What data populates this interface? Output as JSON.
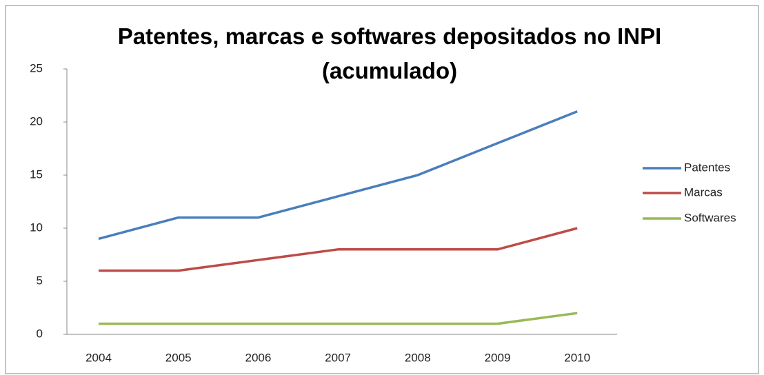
{
  "chart_data": {
    "type": "line",
    "title": "Patentes, marcas e softwares depositados no INPI (acumulado)",
    "categories": [
      "2004",
      "2005",
      "2006",
      "2007",
      "2008",
      "2009",
      "2010"
    ],
    "series": [
      {
        "name": "Patentes",
        "color": "#4a7ebb",
        "values": [
          9,
          11,
          11,
          13,
          15,
          18,
          21
        ]
      },
      {
        "name": "Marcas",
        "color": "#be4b48",
        "values": [
          6,
          6,
          7,
          8,
          8,
          8,
          10
        ]
      },
      {
        "name": "Softwares",
        "color": "#98b954",
        "values": [
          1,
          1,
          1,
          1,
          1,
          1,
          2
        ]
      }
    ],
    "ylim": [
      0,
      25
    ],
    "yticks": [
      0,
      5,
      10,
      15,
      20,
      25
    ],
    "grid": false,
    "legend": "right"
  }
}
